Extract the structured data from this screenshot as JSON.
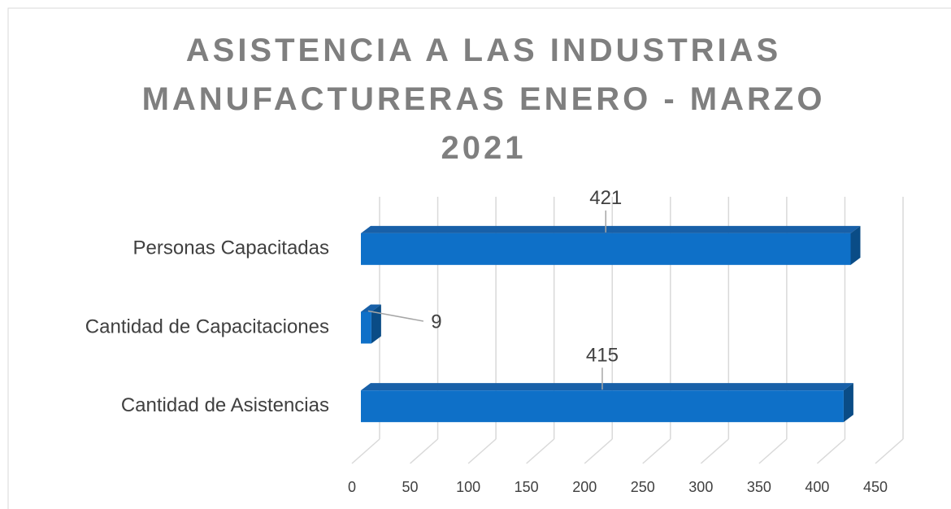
{
  "chart_data": {
    "type": "bar",
    "orientation": "horizontal",
    "title": "ASISTENCIA A LAS INDUSTRIAS MANUFACTURERAS ENERO - MARZO 2021",
    "categories": [
      "Personas Capacitadas",
      "Cantidad de Capacitaciones",
      "Cantidad de Asistencias"
    ],
    "values": [
      421,
      9,
      415
    ],
    "color": "#0e70c8",
    "xlim": [
      0,
      450
    ],
    "xticks": [
      0,
      50,
      100,
      150,
      200,
      250,
      300,
      350,
      400,
      450
    ],
    "grid": true
  }
}
